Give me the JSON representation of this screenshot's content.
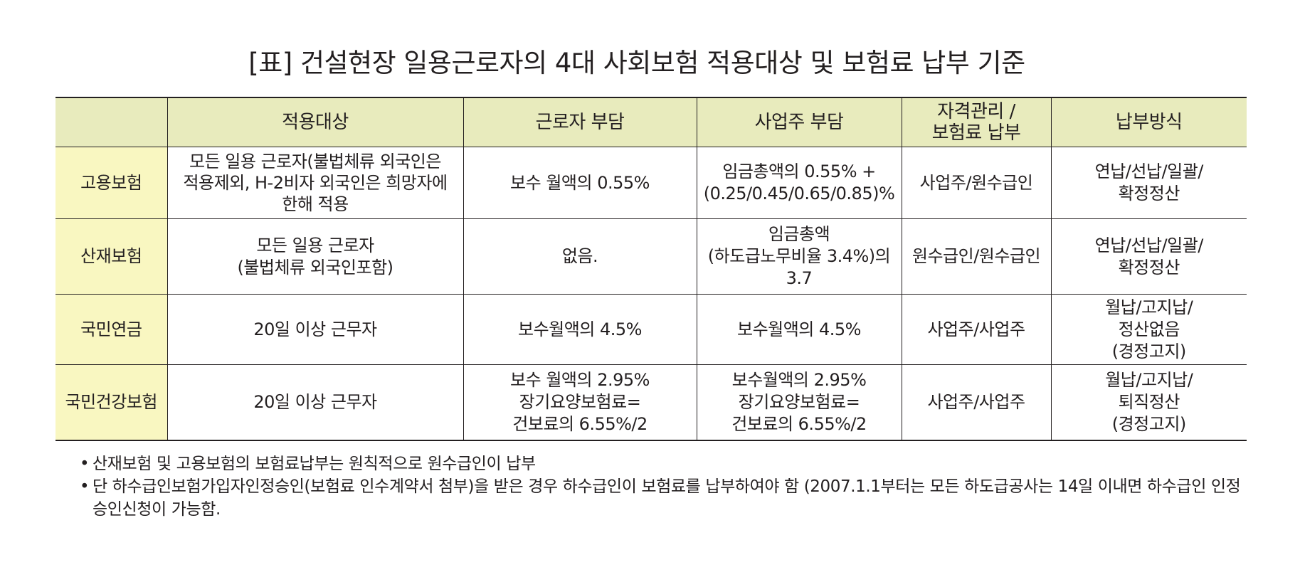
{
  "title": "[표] 건설현장 일용근로자의 4대 사회보험 적용대상 및 보험료 납부 기준",
  "table": {
    "headers": [
      "",
      "적용대상",
      "근로자 부담",
      "사업주 부담",
      "자격관리 /\n보험료 납부",
      "납부방식"
    ],
    "rows": [
      {
        "name": "고용보험",
        "target": "모든 일용 근로자(불법체류 외국인은\n적용제외, H-2비자 외국인은 희망자에\n한해 적용",
        "worker": "보수 월액의 0.55%",
        "employer": "임금총액의 0.55% +\n(0.25/0.45/0.65/0.85)%",
        "manage": "사업주/원수급인",
        "method": "연납/선납/일괄/\n확정정산"
      },
      {
        "name": "산재보험",
        "target": "모든 일용 근로자\n(불법체류 외국인포함)",
        "worker": "없음.",
        "employer": "임금총액\n(하도급노무비율 3.4%)의\n3.7",
        "manage": "원수급인/원수급인",
        "method": "연납/선납/일괄/\n확정정산"
      },
      {
        "name": "국민연금",
        "target": "20일 이상 근무자",
        "worker": "보수월액의 4.5%",
        "employer": "보수월액의 4.5%",
        "manage": "사업주/사업주",
        "method": "월납/고지납/\n정산없음\n(경정고지)"
      },
      {
        "name": "국민건강보험",
        "target": "20일 이상 근무자",
        "worker": "보수 월액의 2.95%\n장기요양보험료=\n건보료의 6.55%/2",
        "employer": "보수월액의 2.95%\n장기요양보험료=\n건보료의 6.55%/2",
        "manage": "사업주/사업주",
        "method": "월납/고지납/\n퇴직정산\n(경정고지)"
      }
    ]
  },
  "notes": {
    "bullet": "•",
    "items": [
      "산재보험 및 고용보험의 보험료납부는 원칙적으로 원수급인이 납부",
      "단 하수급인보험가입자인정승인(보험료 인수계약서 첨부)을 받은 경우 하수급인이 보험료를 납부하여야 함 (2007.1.1부터는 모든 하도급공사는 14일 이내면 하수급인 인정승인신청이 가능함."
    ]
  },
  "colors": {
    "header_bg": "#e8ebbd",
    "rowhead_bg": "#f9f7c1",
    "text": "#231f20"
  }
}
